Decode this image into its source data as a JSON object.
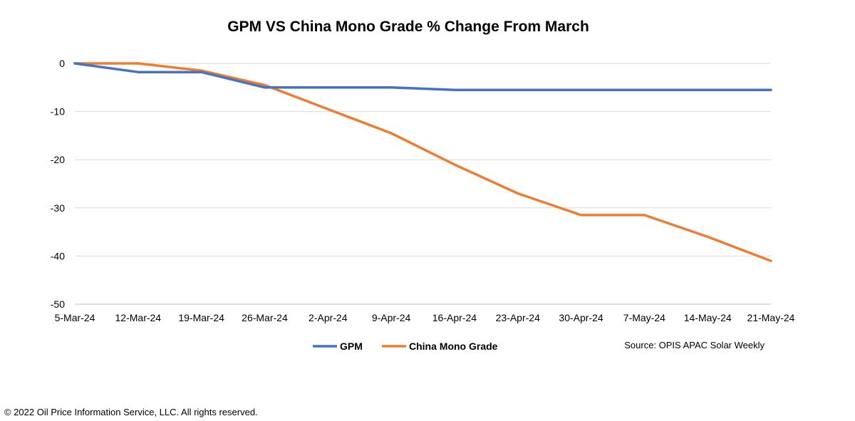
{
  "chart_data": {
    "type": "line",
    "title": "GPM VS China Mono Grade % Change From March",
    "categories": [
      "5-Mar-24",
      "12-Mar-24",
      "19-Mar-24",
      "26-Mar-24",
      "2-Apr-24",
      "9-Apr-24",
      "16-Apr-24",
      "23-Apr-24",
      "30-Apr-24",
      "7-May-24",
      "14-May-24",
      "21-May-24"
    ],
    "ylim": [
      -50,
      0
    ],
    "yticks": [
      0,
      -10,
      -20,
      -30,
      -40,
      -50
    ],
    "grid": true,
    "legend_position": "bottom",
    "series": [
      {
        "name": "GPM",
        "color": "#4472C4",
        "values": [
          0,
          -1.8,
          -1.8,
          -5,
          -5,
          -5,
          -5.5,
          -5.5,
          -5.5,
          -5.5,
          -5.5,
          -5.5
        ]
      },
      {
        "name": "China Mono Grade",
        "color": "#ED7D31",
        "values": [
          0,
          0,
          -1.5,
          -4.5,
          -9.5,
          -14.5,
          -21,
          -27,
          -31.5,
          -31.5,
          -36,
          -41
        ]
      }
    ]
  },
  "source": "Source: OPIS APAC Solar Weekly",
  "copyright": "© 2022 Oil Price Information Service, LLC. All rights reserved."
}
